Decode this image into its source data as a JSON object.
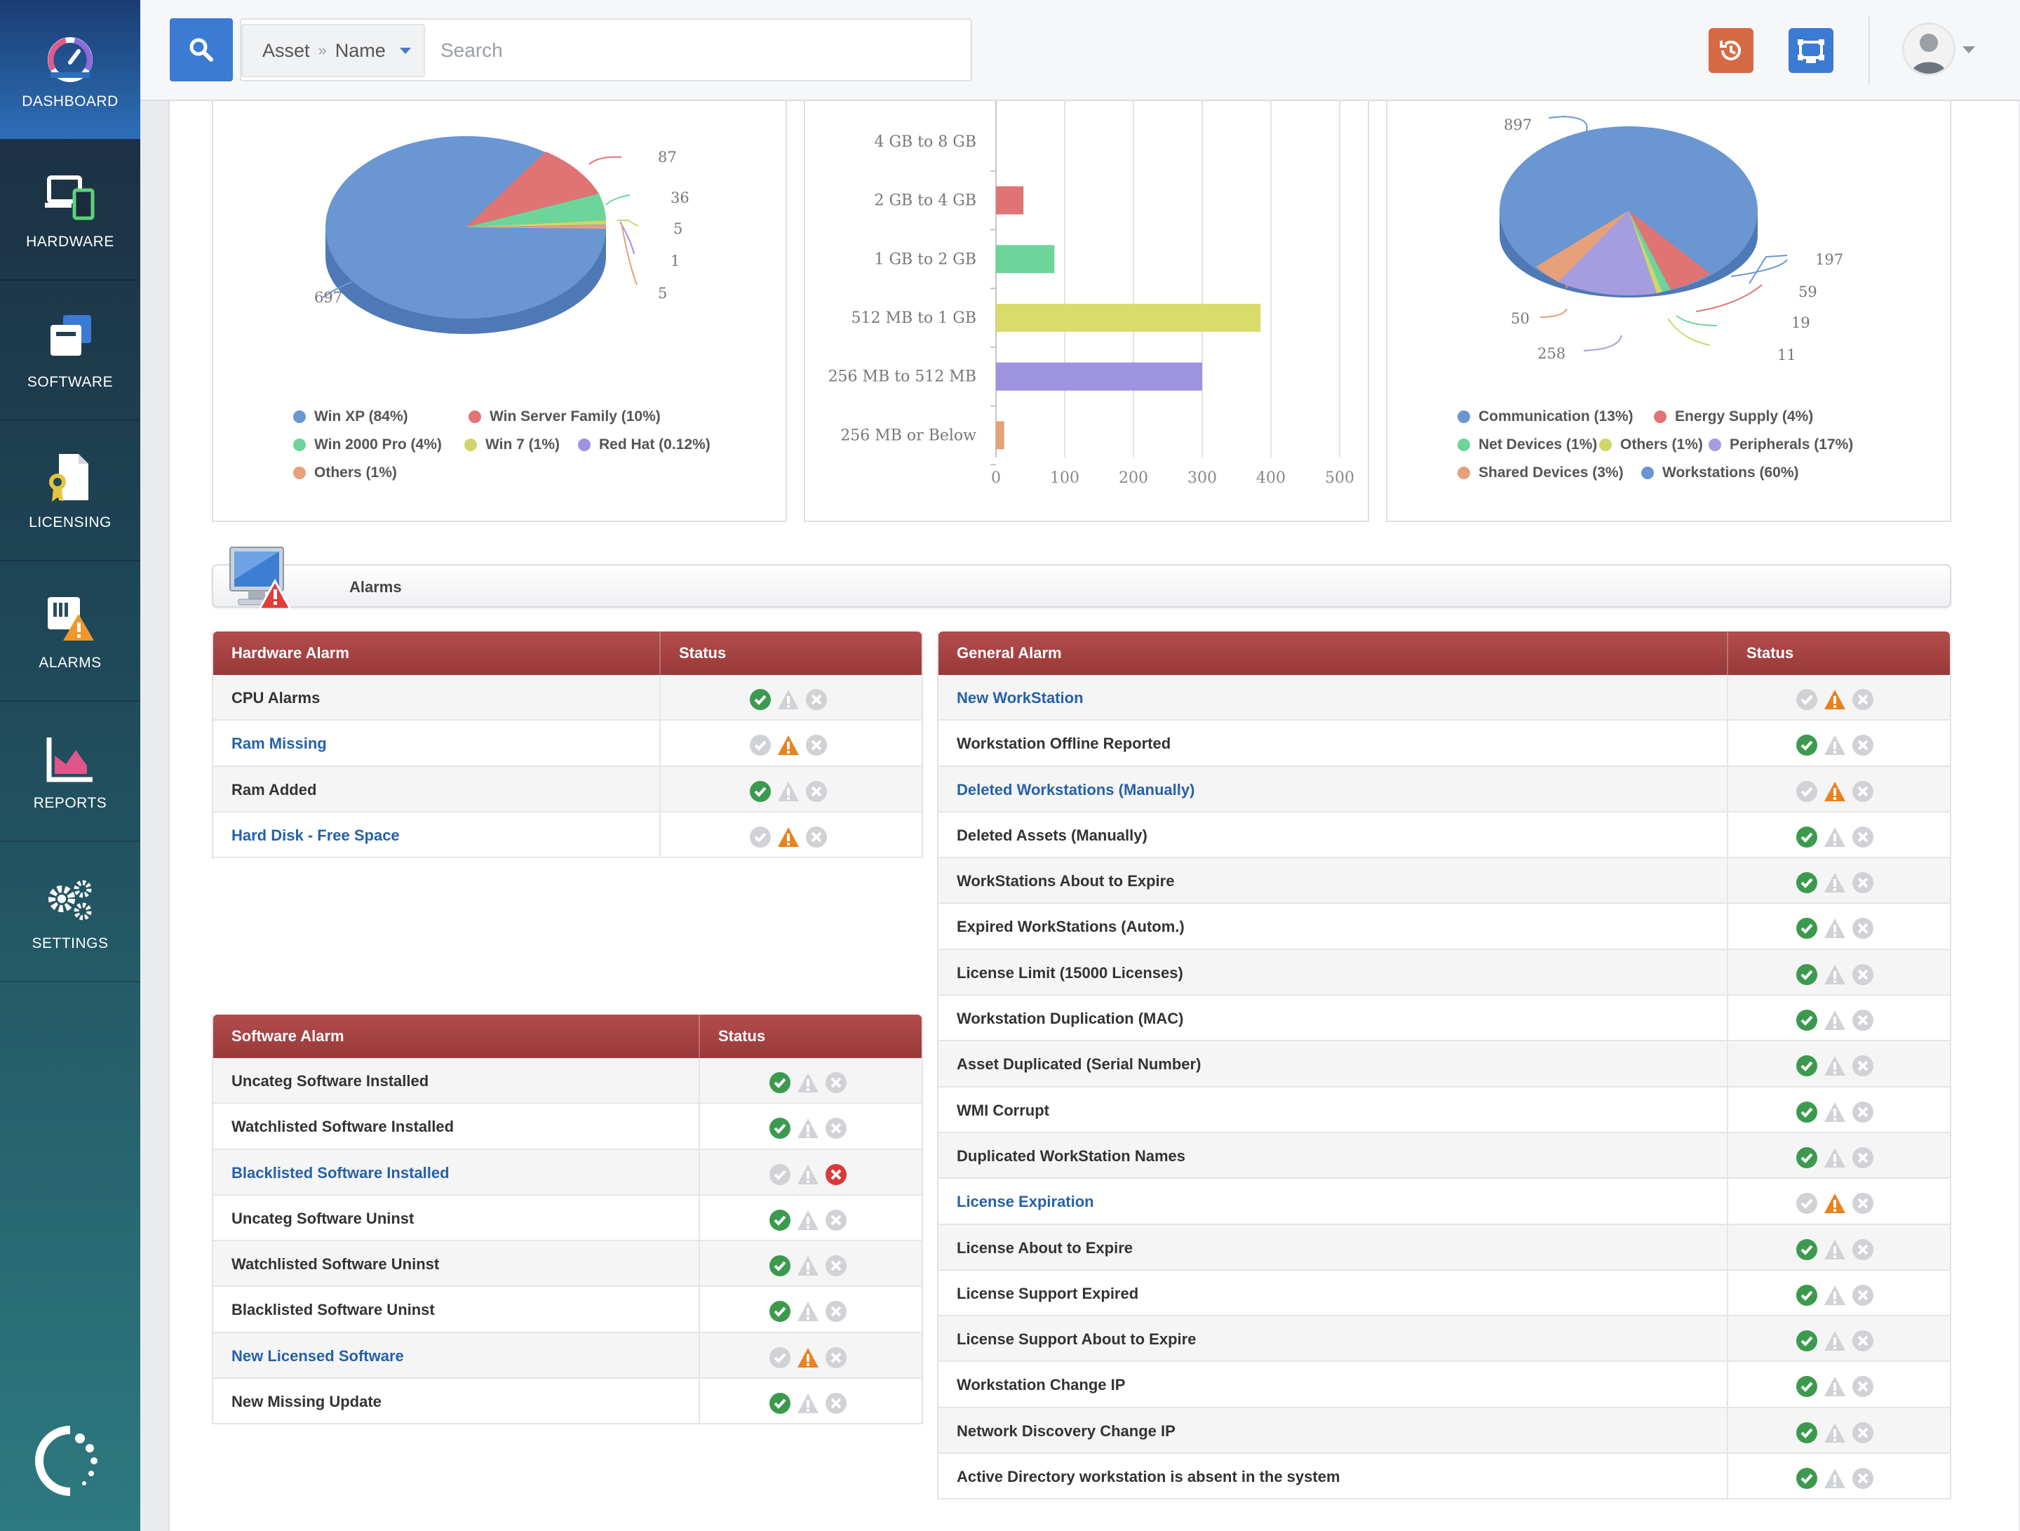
{
  "sidebar": {
    "items": [
      {
        "label": "DASHBOARD",
        "icon": "dashboard-gauge-icon",
        "active": true
      },
      {
        "label": "HARDWARE",
        "icon": "hardware-devices-icon",
        "active": false
      },
      {
        "label": "SOFTWARE",
        "icon": "software-window-icon",
        "active": false
      },
      {
        "label": "LICENSING",
        "icon": "licensing-certificate-icon",
        "active": false
      },
      {
        "label": "ALARMS",
        "icon": "alarms-warning-icon",
        "active": false
      },
      {
        "label": "REPORTS",
        "icon": "reports-chart-icon",
        "active": false
      },
      {
        "label": "SETTINGS",
        "icon": "settings-gears-icon",
        "active": false
      }
    ]
  },
  "topbar": {
    "search_scope_1": "Asset",
    "search_scope_sep": "»",
    "search_scope_2": "Name",
    "search_placeholder": "Search",
    "colors": {
      "search": "#3b7bd3",
      "history": "#d66a45",
      "switch": "#3b7bd3"
    }
  },
  "chart_data": [
    {
      "type": "pie",
      "slices": [
        {
          "label": "Win XP (84%)",
          "value": 697,
          "color": "#6a96d2"
        },
        {
          "label": "Win Server Family (10%)",
          "value": 87,
          "color": "#e07474"
        },
        {
          "label": "Win 2000 Pro (4%)",
          "value": 36,
          "color": "#6dd49a"
        },
        {
          "label": "Win 7 (1%)",
          "value": 5,
          "color": "#cfd66a"
        },
        {
          "label": "Red Hat (0.12%)",
          "value": 1,
          "color": "#9d93de"
        },
        {
          "label": "Others (1%)",
          "value": 5,
          "color": "#e6a07a"
        }
      ]
    },
    {
      "type": "bar",
      "orientation": "horizontal",
      "categories": [
        "4 GB to 8 GB",
        "2 GB to 4 GB",
        "1 GB to 2 GB",
        "512 MB to 1 GB",
        "256 MB to 512 MB",
        "256 MB or Below"
      ],
      "values": [
        0,
        40,
        85,
        385,
        300,
        12
      ],
      "colors": [
        "#6a96d2",
        "#e07474",
        "#6dd49a",
        "#d8dc6a",
        "#9d93de",
        "#e6a07a"
      ],
      "xticks": [
        "0",
        "100",
        "200",
        "300",
        "400",
        "500"
      ],
      "xlim": [
        0,
        500
      ]
    },
    {
      "type": "pie",
      "slices": [
        {
          "label": "Workstations (60%)",
          "value": 897,
          "color": "#6a96d2"
        },
        {
          "label": "Communication (13%)",
          "value": 197,
          "color": "#6a96d2"
        },
        {
          "label": "Energy Supply (4%)",
          "value": 59,
          "color": "#e07474"
        },
        {
          "label": "Net Devices (1%)",
          "value": 19,
          "color": "#6dd49a"
        },
        {
          "label": "Others (1%)",
          "value": 11,
          "color": "#cfd66a"
        },
        {
          "label": "Peripherals (17%)",
          "value": 258,
          "color": "#a59de0"
        },
        {
          "label": "Shared Devices (3%)",
          "value": 50,
          "color": "#e6a07a"
        }
      ]
    }
  ],
  "legends": {
    "os": [
      "Win XP (84%)",
      "Win Server Family (10%)",
      "Win 2000 Pro (4%)",
      "Win 7 (1%)",
      "Red Hat (0.12%)",
      "Others (1%)"
    ],
    "cat": [
      "Communication (13%)",
      "Energy Supply (4%)",
      "Net Devices (1%)",
      "Others (1%)",
      "Peripherals (17%)",
      "Shared Devices (3%)",
      "Workstations (60%)"
    ]
  },
  "alarms": {
    "title": "Alarms",
    "hardware": {
      "header": "Hardware Alarm",
      "status_header": "Status",
      "rows": [
        {
          "name": "CPU Alarms",
          "link": false,
          "status": "ok"
        },
        {
          "name": "Ram Missing",
          "link": true,
          "status": "warn"
        },
        {
          "name": "Ram Added",
          "link": false,
          "status": "ok"
        },
        {
          "name": "Hard Disk - Free Space",
          "link": true,
          "status": "warn"
        }
      ]
    },
    "software": {
      "header": "Software Alarm",
      "status_header": "Status",
      "rows": [
        {
          "name": "Uncateg Software Installed",
          "link": false,
          "status": "ok"
        },
        {
          "name": "Watchlisted Software Installed",
          "link": false,
          "status": "ok"
        },
        {
          "name": "Blacklisted Software Installed",
          "link": true,
          "status": "error"
        },
        {
          "name": "Uncateg Software Uninst",
          "link": false,
          "status": "ok"
        },
        {
          "name": "Watchlisted Software Uninst",
          "link": false,
          "status": "ok"
        },
        {
          "name": "Blacklisted Software Uninst",
          "link": false,
          "status": "ok"
        },
        {
          "name": "New Licensed Software",
          "link": true,
          "status": "warn"
        },
        {
          "name": "New Missing Update",
          "link": false,
          "status": "ok"
        }
      ]
    },
    "general": {
      "header": "General Alarm",
      "status_header": "Status",
      "rows": [
        {
          "name": "New WorkStation",
          "link": true,
          "status": "warn"
        },
        {
          "name": "Workstation Offline Reported",
          "link": false,
          "status": "ok"
        },
        {
          "name": "Deleted Workstations (Manually)",
          "link": true,
          "status": "warn"
        },
        {
          "name": "Deleted Assets (Manually)",
          "link": false,
          "status": "ok"
        },
        {
          "name": "WorkStations About to Expire",
          "link": false,
          "status": "ok"
        },
        {
          "name": "Expired WorkStations (Autom.)",
          "link": false,
          "status": "ok"
        },
        {
          "name": "License Limit (15000 Licenses)",
          "link": false,
          "status": "ok"
        },
        {
          "name": "Workstation Duplication (MAC)",
          "link": false,
          "status": "ok"
        },
        {
          "name": "Asset Duplicated (Serial Number)",
          "link": false,
          "status": "ok"
        },
        {
          "name": "WMI Corrupt",
          "link": false,
          "status": "ok"
        },
        {
          "name": "Duplicated WorkStation Names",
          "link": false,
          "status": "ok"
        },
        {
          "name": "License Expiration",
          "link": true,
          "status": "warn"
        },
        {
          "name": "License About to Expire",
          "link": false,
          "status": "ok"
        },
        {
          "name": "License Support Expired",
          "link": false,
          "status": "ok"
        },
        {
          "name": "License Support About to Expire",
          "link": false,
          "status": "ok"
        },
        {
          "name": "Workstation Change IP",
          "link": false,
          "status": "ok"
        },
        {
          "name": "Network Discovery Change IP",
          "link": false,
          "status": "ok"
        },
        {
          "name": "Active Directory workstation is absent in the system",
          "link": false,
          "status": "ok"
        }
      ]
    }
  }
}
